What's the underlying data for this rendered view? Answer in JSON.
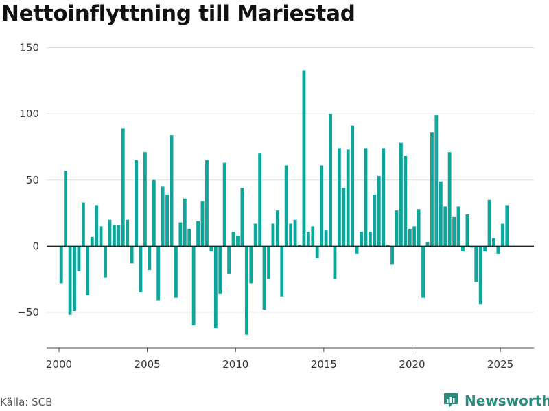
{
  "title": "Nettoinflyttning till Mariestad",
  "source": "Källa: SCB",
  "brand": {
    "name": "Newsworthy",
    "icon": "newsworthy-logo-icon",
    "color": "#2a8a7c"
  },
  "chart_data": {
    "type": "bar",
    "title": "Nettoinflyttning till Mariestad",
    "bar_color": "#0ea59a",
    "xlim": [
      1999.3,
      2026.9
    ],
    "ylim": [
      -77,
      155
    ],
    "x_ticks": [
      2000,
      2005,
      2010,
      2015,
      2020,
      2025
    ],
    "y_ticks": [
      -50,
      0,
      50,
      100,
      150
    ],
    "grid": true,
    "series": [
      {
        "x": [
          2000.125,
          2000.375,
          2000.625,
          2000.875,
          2001.125,
          2001.375,
          2001.625,
          2001.875,
          2002.125,
          2002.375,
          2002.625,
          2002.875,
          2003.125,
          2003.375,
          2003.625,
          2003.875,
          2004.125,
          2004.375,
          2004.625,
          2004.875,
          2005.125,
          2005.375,
          2005.625,
          2005.875,
          2006.125,
          2006.375,
          2006.625,
          2006.875,
          2007.125,
          2007.375,
          2007.625,
          2007.875,
          2008.125,
          2008.375,
          2008.625,
          2008.875,
          2009.125,
          2009.375,
          2009.625,
          2009.875,
          2010.125,
          2010.375,
          2010.625,
          2010.875,
          2011.125,
          2011.375,
          2011.625,
          2011.875,
          2012.125,
          2012.375,
          2012.625,
          2012.875,
          2013.125,
          2013.375,
          2013.625,
          2013.875,
          2014.125,
          2014.375,
          2014.625,
          2014.875,
          2015.125,
          2015.375,
          2015.625,
          2015.875,
          2016.125,
          2016.375,
          2016.625,
          2016.875,
          2017.125,
          2017.375,
          2017.625,
          2017.875,
          2018.125,
          2018.375,
          2018.625,
          2018.875,
          2019.125,
          2019.375,
          2019.625,
          2019.875,
          2020.125,
          2020.375,
          2020.625,
          2020.875,
          2021.125,
          2021.375,
          2021.625,
          2021.875,
          2022.125,
          2022.375,
          2022.625,
          2022.875,
          2023.125,
          2023.375,
          2023.625,
          2023.875,
          2024.125,
          2024.375,
          2024.625,
          2024.875,
          2025.125,
          2025.375
        ],
        "values": [
          -28,
          57,
          -52,
          -49,
          -19,
          33,
          -37,
          7,
          31,
          15,
          -24,
          20,
          16,
          16,
          89,
          20,
          -13,
          65,
          -35,
          71,
          -18,
          50,
          -41,
          45,
          39,
          84,
          -39,
          18,
          36,
          13,
          -60,
          19,
          34,
          65,
          -4,
          -62,
          -36,
          63,
          -21,
          11,
          8,
          44,
          -67,
          -28,
          17,
          70,
          -48,
          -25,
          17,
          27,
          -38,
          61,
          17,
          20,
          1,
          133,
          11,
          15,
          -9,
          61,
          12,
          100,
          -25,
          74,
          44,
          73,
          91,
          -6,
          11,
          74,
          11,
          39,
          53,
          74,
          1,
          -14,
          27,
          78,
          68,
          13,
          15,
          28,
          -39,
          3,
          86,
          99,
          49,
          30,
          71,
          22,
          30,
          -4,
          24,
          -1,
          -27,
          -44,
          -4,
          35,
          6,
          -6,
          17,
          31
        ]
      }
    ]
  }
}
